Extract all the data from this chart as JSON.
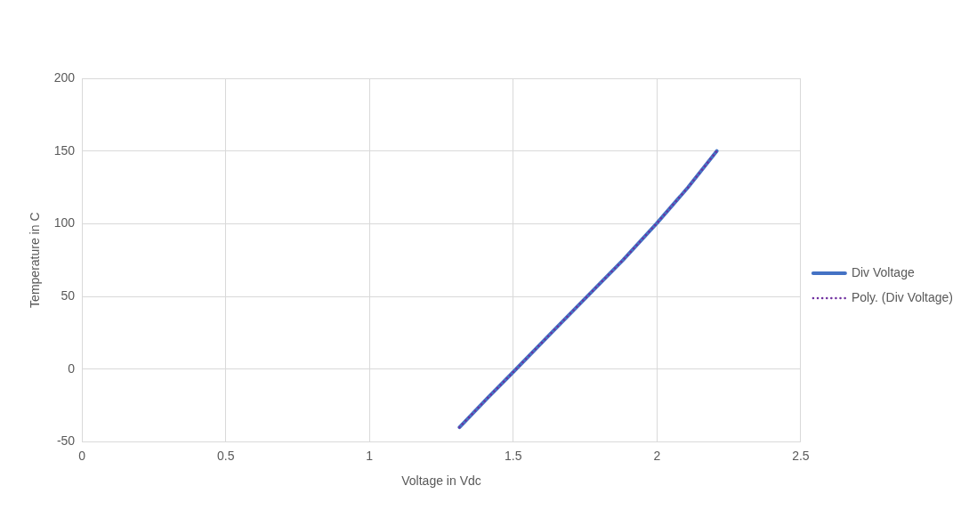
{
  "chart_data": {
    "type": "line",
    "xlabel": "Voltage in Vdc",
    "ylabel": "Temperature in C",
    "xlim": [
      0,
      2.5
    ],
    "xticks": [
      0,
      0.5,
      1,
      1.5,
      2,
      2.5
    ],
    "ylim": [
      -50,
      200
    ],
    "yticks": [
      -50,
      0,
      50,
      100,
      150,
      200
    ],
    "grid": true,
    "legend": "right",
    "marker": "none",
    "series": [
      {
        "name": "Div Voltage",
        "color": "#4472c4",
        "line_style": "solid",
        "x": [
          1.313,
          1.41,
          1.5,
          1.633,
          1.757,
          1.882,
          1.998,
          2.108,
          2.208
        ],
        "values": [
          -40,
          -20,
          -2,
          25,
          50,
          75,
          100,
          125,
          150
        ]
      },
      {
        "name": "Poly. (Div Voltage)",
        "color": "#7030a0",
        "line_style": "dotted",
        "x": [
          1.313,
          1.41,
          1.5,
          1.633,
          1.757,
          1.882,
          1.998,
          2.108,
          2.208
        ],
        "values": [
          -40,
          -20,
          -2,
          25,
          50,
          75,
          100,
          125,
          150
        ]
      }
    ]
  }
}
